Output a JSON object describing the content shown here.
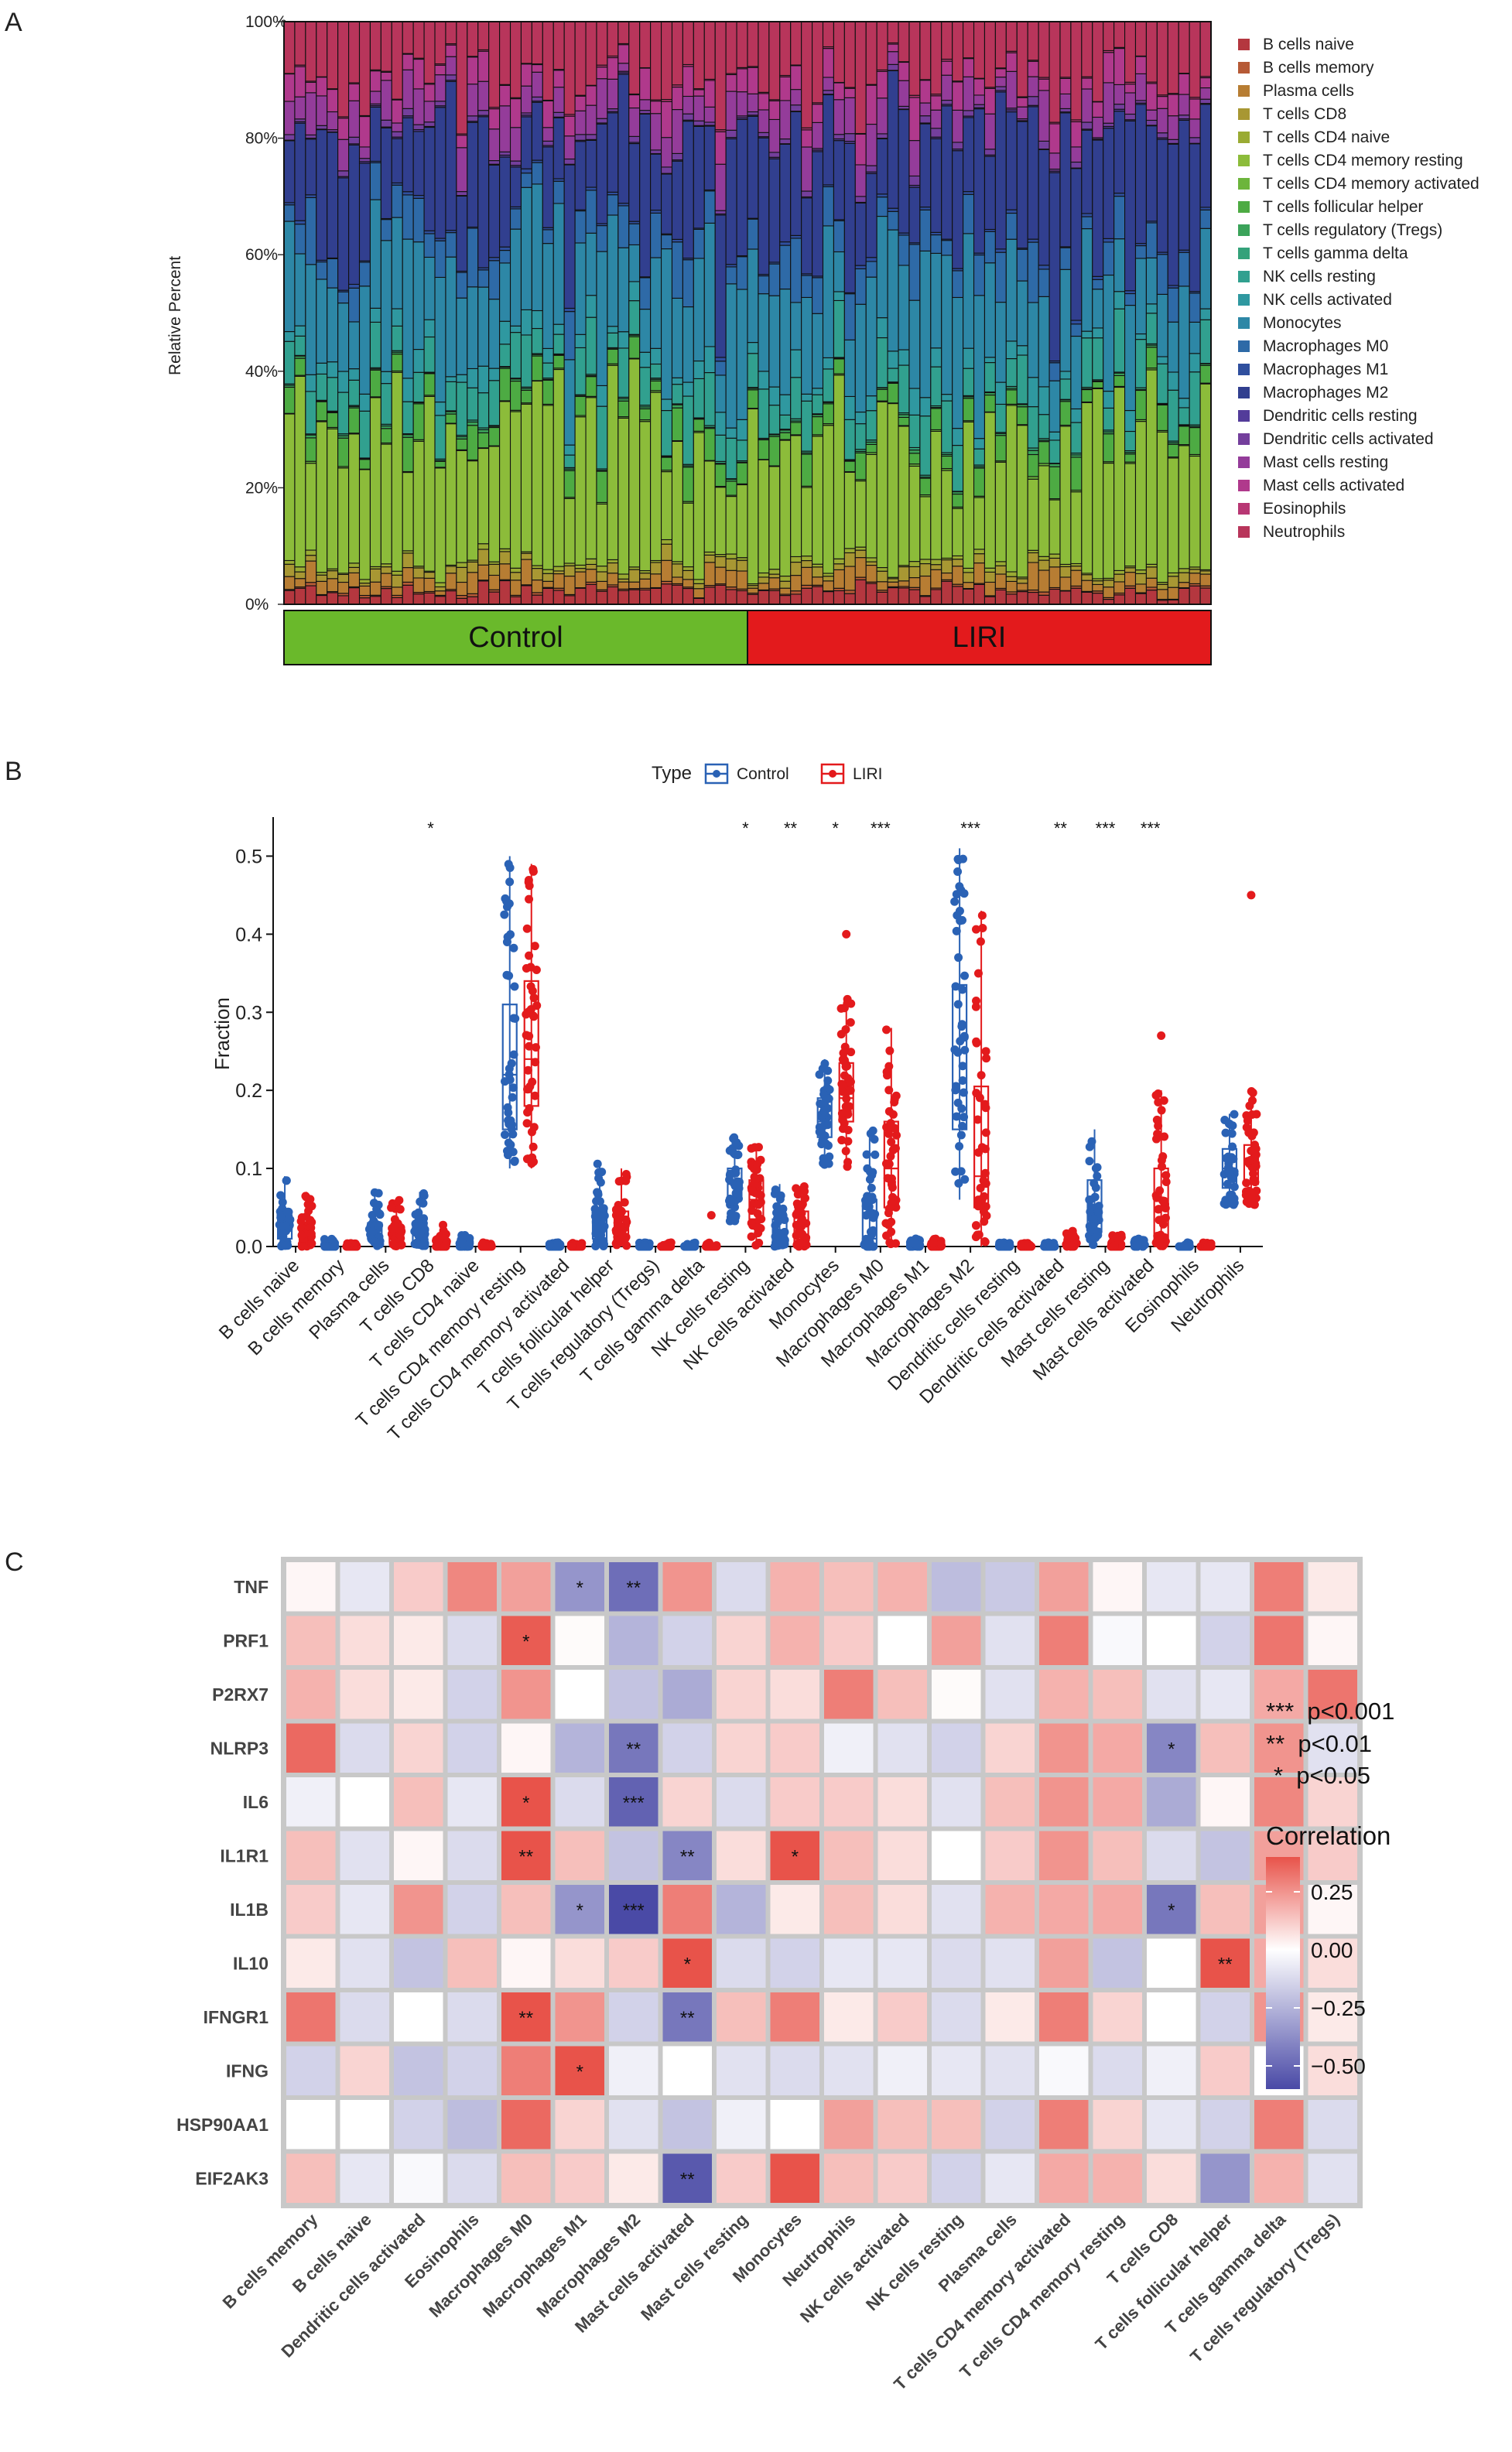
{
  "panels": [
    "A",
    "B",
    "C"
  ],
  "chart_data": [
    {
      "type": "bar",
      "id": "A",
      "subtype": "stacked-percent",
      "ylabel": "Relative Percent",
      "yticks": [
        "0%",
        "20%",
        "40%",
        "60%",
        "80%",
        "100%"
      ],
      "ylim": [
        0,
        100
      ],
      "n_samples": 86,
      "groups": [
        {
          "name": "Control",
          "count": 43,
          "color": "#6ab92b"
        },
        {
          "name": "LIRI",
          "count": 43,
          "color": "#e31a1c"
        }
      ],
      "legend": [
        {
          "name": "B cells naive",
          "color": "#b4373f"
        },
        {
          "name": "B cells memory",
          "color": "#b65a36"
        },
        {
          "name": "Plasma cells",
          "color": "#b77d33"
        },
        {
          "name": "T cells CD8",
          "color": "#a89733"
        },
        {
          "name": "T cells CD4 naive",
          "color": "#9aab33"
        },
        {
          "name": "T cells CD4 memory resting",
          "color": "#8cbc3a"
        },
        {
          "name": "T cells CD4 memory activated",
          "color": "#6cb53c"
        },
        {
          "name": "T cells follicular helper",
          "color": "#4dab43"
        },
        {
          "name": "T cells regulatory (Tregs)",
          "color": "#3ba35a"
        },
        {
          "name": "T cells gamma delta",
          "color": "#34a27a"
        },
        {
          "name": "NK cells resting",
          "color": "#31a08f"
        },
        {
          "name": "NK cells activated",
          "color": "#2f98a0"
        },
        {
          "name": "Monocytes",
          "color": "#2d87a6"
        },
        {
          "name": "Macrophages M0",
          "color": "#2e6aa7"
        },
        {
          "name": "Macrophages M1",
          "color": "#2f4f9e"
        },
        {
          "name": "Macrophages M2",
          "color": "#313f8f"
        },
        {
          "name": "Dendritic cells resting",
          "color": "#533c9a"
        },
        {
          "name": "Dendritic cells activated",
          "color": "#743f9c"
        },
        {
          "name": "Mast cells resting",
          "color": "#943c9a"
        },
        {
          "name": "Mast cells activated",
          "color": "#b0398c"
        },
        {
          "name": "Eosinophils",
          "color": "#b83774"
        },
        {
          "name": "Neutrophils",
          "color": "#b8355b"
        }
      ],
      "mean_fractions": [
        2.3,
        0.3,
        2.2,
        1.5,
        0.6,
        24,
        0.2,
        3.5,
        0.3,
        0.2,
        6.5,
        2.5,
        16,
        5.5,
        0.4,
        19,
        0.2,
        0.8,
        4.5,
        3.8,
        0.2,
        10.8
      ]
    },
    {
      "type": "box",
      "id": "B",
      "ylabel": "Fraction",
      "ylim": [
        0,
        0.55
      ],
      "yticks": [
        0.0,
        0.1,
        0.2,
        0.3,
        0.4,
        0.5
      ],
      "legend_title": "Type",
      "series": [
        {
          "name": "Control",
          "color": "#2a62b5"
        },
        {
          "name": "LIRI",
          "color": "#e31a1c"
        }
      ],
      "categories": [
        "B cells naive",
        "B cells memory",
        "Plasma cells",
        "T cells CD8",
        "T cells CD4 naive",
        "T cells CD4 memory resting",
        "T cells CD4 memory activated",
        "T cells follicular helper",
        "T cells regulatory (Tregs)",
        "T cells gamma delta",
        "NK cells resting",
        "NK cells activated",
        "Monocytes",
        "Macrophages M0",
        "Macrophages M1",
        "Macrophages M2",
        "Dendritic cells resting",
        "Dendritic cells activated",
        "Mast cells resting",
        "Mast cells activated",
        "Eosinophils",
        "Neutrophils"
      ],
      "significance": [
        "",
        "",
        "",
        "*",
        "",
        "",
        "",
        "",
        "",
        "",
        "*",
        "**",
        "*",
        "***",
        "",
        "***",
        "",
        "**",
        "***",
        "***",
        "",
        ""
      ],
      "boxes": {
        "Control": [
          [
            0,
            0.01,
            0.02,
            0.04,
            0.09
          ],
          [
            0,
            0,
            0,
            0,
            0.01
          ],
          [
            0,
            0.01,
            0.02,
            0.03,
            0.07
          ],
          [
            0,
            0.005,
            0.015,
            0.03,
            0.07
          ],
          [
            0,
            0,
            0,
            0.005,
            0.015
          ],
          [
            0.1,
            0.15,
            0.22,
            0.31,
            0.5
          ],
          [
            0,
            0,
            0,
            0,
            0.005
          ],
          [
            0,
            0.01,
            0.02,
            0.045,
            0.11
          ],
          [
            0,
            0,
            0,
            0,
            0.005
          ],
          [
            0,
            0,
            0,
            0,
            0.005
          ],
          [
            0.03,
            0.06,
            0.08,
            0.1,
            0.14
          ],
          [
            0,
            0.005,
            0.02,
            0.035,
            0.08
          ],
          [
            0.1,
            0.14,
            0.16,
            0.19,
            0.24
          ],
          [
            0,
            0,
            0.01,
            0.06,
            0.15
          ],
          [
            0,
            0,
            0,
            0.005,
            0.01
          ],
          [
            0.06,
            0.15,
            0.25,
            0.335,
            0.51
          ],
          [
            0,
            0,
            0,
            0,
            0.005
          ],
          [
            0,
            0,
            0,
            0,
            0.005
          ],
          [
            0,
            0.02,
            0.04,
            0.085,
            0.15
          ],
          [
            0,
            0,
            0,
            0.005,
            0.01
          ],
          [
            0,
            0,
            0,
            0,
            0.005
          ],
          [
            0.05,
            0.075,
            0.1,
            0.125,
            0.17
          ]
        ],
        "LIRI": [
          [
            0,
            0.005,
            0.015,
            0.03,
            0.07
          ],
          [
            0,
            0,
            0,
            0,
            0.005
          ],
          [
            0,
            0.005,
            0.01,
            0.025,
            0.06
          ],
          [
            0,
            0,
            0.005,
            0.01,
            0.03
          ],
          [
            0,
            0,
            0,
            0,
            0.005
          ],
          [
            0.1,
            0.18,
            0.24,
            0.34,
            0.49
          ],
          [
            0,
            0,
            0,
            0,
            0.005
          ],
          [
            0,
            0.01,
            0.025,
            0.045,
            0.1
          ],
          [
            0,
            0,
            0,
            0,
            0.005
          ],
          [
            0,
            0,
            0,
            0,
            0.005
          ],
          [
            0,
            0.035,
            0.06,
            0.085,
            0.13
          ],
          [
            0,
            0.005,
            0.015,
            0.045,
            0.08
          ],
          [
            0.1,
            0.16,
            0.19,
            0.235,
            0.32
          ],
          [
            0,
            0.05,
            0.1,
            0.16,
            0.28
          ],
          [
            0,
            0,
            0,
            0.005,
            0.01
          ],
          [
            0,
            0.05,
            0.09,
            0.205,
            0.43
          ],
          [
            0,
            0,
            0,
            0,
            0.005
          ],
          [
            0,
            0,
            0,
            0.005,
            0.02
          ],
          [
            0,
            0,
            0,
            0.005,
            0.015
          ],
          [
            0,
            0.01,
            0.05,
            0.1,
            0.2
          ],
          [
            0,
            0,
            0,
            0,
            0.005
          ],
          [
            0.05,
            0.08,
            0.11,
            0.13,
            0.2
          ]
        ]
      },
      "outliers": [
        {
          "category": "T cells gamma delta",
          "series": "LIRI",
          "value": 0.04
        },
        {
          "category": "Monocytes",
          "series": "LIRI",
          "value": 0.4
        },
        {
          "category": "Mast cells activated",
          "series": "LIRI",
          "value": 0.27
        },
        {
          "category": "Neutrophils",
          "series": "LIRI",
          "value": 0.45
        }
      ]
    },
    {
      "type": "heatmap",
      "id": "C",
      "rows": [
        "TNF",
        "PRF1",
        "P2RX7",
        "NLRP3",
        "IL6",
        "IL1R1",
        "IL1B",
        "IL10",
        "IFNGR1",
        "IFNG",
        "HSP90AA1",
        "EIF2AK3"
      ],
      "columns": [
        "B cells memory",
        "B cells naive",
        "Dendritic cells activated",
        "Eosinophils",
        "Macrophages M0",
        "Macrophages M1",
        "Macrophages M2",
        "Mast cells activated",
        "Mast cells resting",
        "Monocytes",
        "Neutrophils",
        "NK cells activated",
        "NK cells resting",
        "Plasma cells",
        "T cells CD4 memory activated",
        "T cells CD4 memory resting",
        "T cells CD8",
        "T cells follicular helper",
        "T cells gamma delta",
        "T cells regulatory (Tregs)"
      ],
      "values": [
        [
          0.02,
          -0.08,
          0.12,
          0.28,
          0.22,
          -0.35,
          -0.48,
          0.25,
          -0.12,
          0.18,
          0.15,
          0.18,
          -0.22,
          -0.18,
          0.22,
          0.02,
          -0.08,
          -0.08,
          0.3,
          0.05
        ],
        [
          0.15,
          0.08,
          0.05,
          -0.12,
          0.38,
          0.01,
          -0.25,
          -0.15,
          0.1,
          0.18,
          0.12,
          0.0,
          0.22,
          -0.1,
          0.3,
          -0.02,
          0.0,
          -0.15,
          0.32,
          0.02
        ],
        [
          0.18,
          0.08,
          0.05,
          -0.15,
          0.25,
          0.0,
          -0.2,
          -0.28,
          0.1,
          0.08,
          0.3,
          0.15,
          0.01,
          -0.1,
          0.18,
          0.15,
          -0.1,
          -0.08,
          0.2,
          0.32
        ],
        [
          0.35,
          -0.12,
          0.1,
          -0.15,
          0.02,
          -0.25,
          -0.45,
          -0.15,
          0.1,
          0.12,
          -0.05,
          -0.1,
          -0.15,
          0.1,
          0.25,
          0.2,
          -0.4,
          0.15,
          0.25,
          -0.1
        ],
        [
          -0.05,
          0.0,
          0.15,
          -0.08,
          0.45,
          -0.12,
          -0.52,
          0.1,
          -0.12,
          0.12,
          0.12,
          0.08,
          -0.1,
          0.15,
          0.25,
          0.2,
          -0.28,
          0.02,
          0.28,
          0.1
        ],
        [
          0.15,
          -0.1,
          0.02,
          -0.12,
          0.5,
          0.15,
          -0.2,
          -0.4,
          0.08,
          0.45,
          0.15,
          0.08,
          0.0,
          0.12,
          0.25,
          0.15,
          -0.12,
          -0.2,
          0.22,
          0.12
        ],
        [
          0.12,
          -0.08,
          0.25,
          -0.15,
          0.15,
          -0.35,
          -0.6,
          0.3,
          -0.25,
          0.05,
          0.15,
          0.08,
          -0.1,
          0.18,
          0.2,
          0.2,
          -0.45,
          0.15,
          0.22,
          0.02
        ],
        [
          0.05,
          -0.1,
          -0.2,
          0.15,
          0.02,
          0.08,
          0.12,
          0.45,
          -0.12,
          -0.15,
          -0.08,
          -0.08,
          -0.12,
          -0.1,
          0.22,
          -0.2,
          0.0,
          0.55,
          0.2,
          0.08
        ],
        [
          0.32,
          -0.12,
          0.0,
          -0.12,
          0.5,
          0.25,
          -0.15,
          -0.45,
          0.15,
          0.3,
          0.05,
          0.12,
          -0.12,
          0.05,
          0.3,
          0.1,
          0.0,
          -0.15,
          0.25,
          0.05
        ],
        [
          -0.15,
          0.1,
          -0.2,
          -0.15,
          0.3,
          0.45,
          -0.05,
          0.0,
          -0.1,
          -0.12,
          -0.1,
          -0.05,
          -0.08,
          -0.1,
          -0.02,
          -0.12,
          -0.05,
          0.12,
          0.0,
          0.08
        ],
        [
          0.0,
          0.0,
          -0.15,
          -0.22,
          0.35,
          0.1,
          -0.1,
          -0.2,
          -0.05,
          0.0,
          0.22,
          0.15,
          0.15,
          -0.15,
          0.3,
          0.1,
          -0.08,
          -0.15,
          0.3,
          -0.12
        ],
        [
          0.15,
          -0.08,
          -0.02,
          -0.12,
          0.15,
          0.12,
          0.05,
          -0.55,
          0.12,
          0.4,
          0.15,
          0.12,
          -0.15,
          -0.08,
          0.2,
          0.18,
          0.08,
          -0.35,
          0.18,
          -0.1
        ]
      ],
      "stars": [
        [
          "",
          "",
          "",
          "",
          "",
          "*",
          "**",
          "",
          "",
          "",
          "",
          "",
          "",
          "",
          "",
          "",
          "",
          "",
          "",
          ""
        ],
        [
          "",
          "",
          "",
          "",
          "*",
          "",
          "",
          "",
          "",
          "",
          "",
          "",
          "",
          "",
          "",
          "",
          "",
          "",
          "",
          ""
        ],
        [
          "",
          "",
          "",
          "",
          "",
          "",
          "",
          "",
          "",
          "",
          "",
          "",
          "",
          "",
          "",
          "",
          "",
          "",
          "",
          ""
        ],
        [
          "",
          "",
          "",
          "",
          "",
          "",
          "**",
          "",
          "",
          "",
          "",
          "",
          "",
          "",
          "",
          "",
          "*",
          "",
          "",
          ""
        ],
        [
          "",
          "",
          "",
          "",
          "*",
          "",
          "***",
          "",
          "",
          "",
          "",
          "",
          "",
          "",
          "",
          "",
          "",
          "",
          "",
          ""
        ],
        [
          "",
          "",
          "",
          "",
          "**",
          "",
          "",
          "**",
          "",
          "*",
          "",
          "",
          "",
          "",
          "",
          "",
          "",
          "",
          "",
          ""
        ],
        [
          "",
          "",
          "",
          "",
          "",
          "*",
          "***",
          "",
          "",
          "",
          "",
          "",
          "",
          "",
          "",
          "",
          "*",
          "",
          "",
          ""
        ],
        [
          "",
          "",
          "",
          "",
          "",
          "",
          "",
          "*",
          "",
          "",
          "",
          "",
          "",
          "",
          "",
          "",
          "",
          "**",
          "",
          ""
        ],
        [
          "",
          "",
          "",
          "",
          "**",
          "",
          "",
          "**",
          "",
          "",
          "",
          "",
          "",
          "",
          "",
          "",
          "",
          "",
          "",
          ""
        ],
        [
          "",
          "",
          "",
          "",
          "",
          "*",
          "",
          "",
          "",
          "",
          "",
          "",
          "",
          "",
          "",
          "",
          "",
          "",
          "",
          ""
        ],
        [
          "",
          "",
          "",
          "",
          "",
          "",
          "",
          "",
          "",
          "",
          "",
          "",
          "",
          "",
          "",
          "",
          "",
          "",
          "",
          ""
        ],
        [
          "",
          "",
          "",
          "",
          "",
          "",
          "",
          "**",
          "",
          "",
          "",
          "",
          "",
          "",
          "",
          "",
          "",
          "",
          "",
          ""
        ]
      ],
      "significance_legend": [
        "***  p<0.001",
        "**  p<0.01",
        "*  p<0.05"
      ],
      "colorbar_title": "Correlation",
      "colorbar_ticks": [
        "0.25",
        "0.00",
        "−0.25",
        "−0.50"
      ],
      "colorbar_values": [
        0.25,
        0.0,
        -0.25,
        -0.5
      ],
      "colorbar_range": [
        -0.6,
        0.4
      ],
      "colors": {
        "low": "#4a4aa6",
        "mid": "#ffffff",
        "high": "#e8534a"
      }
    }
  ]
}
